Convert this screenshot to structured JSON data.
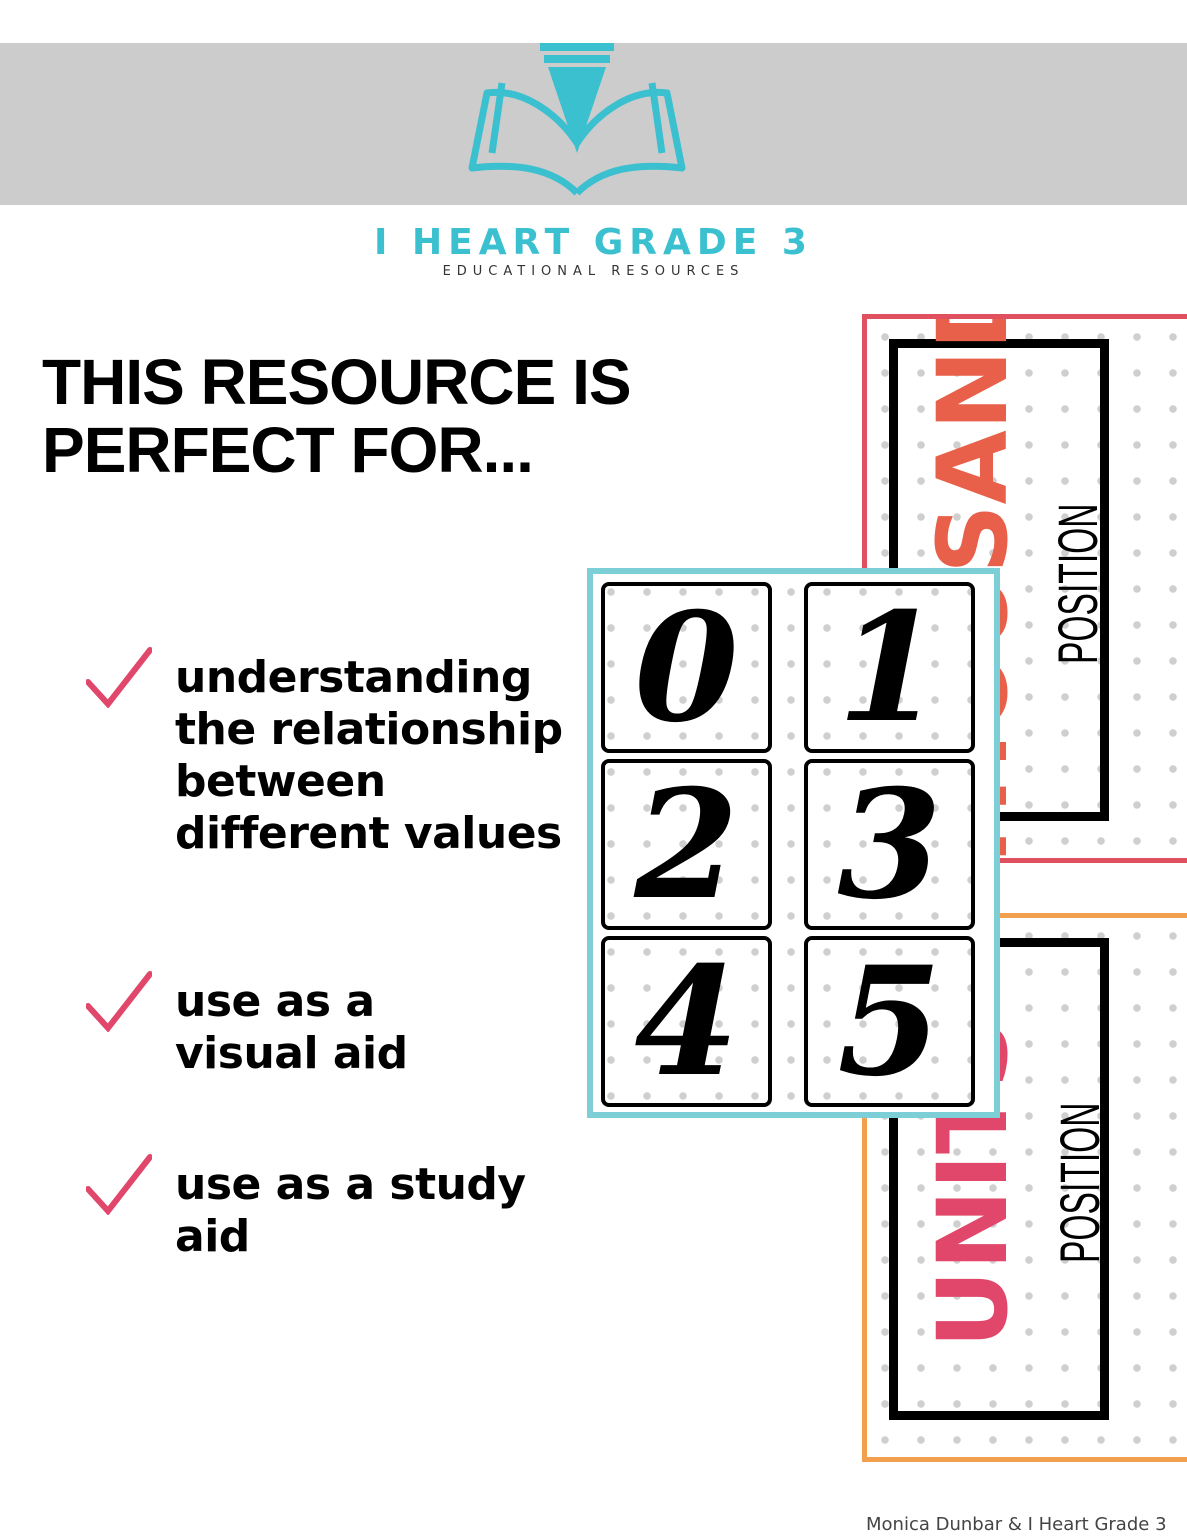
{
  "header": {
    "brand_title": "I HEART GRADE 3",
    "brand_subtitle": "EDUCATIONAL RESOURCES",
    "brand_color": "#3bc0d0",
    "logo_icon": "open-book-pen-icon"
  },
  "headline": {
    "line1": "THIS RESOURCE IS",
    "line2": "PERFECT FOR..."
  },
  "items": [
    {
      "lines": [
        "understanding",
        "the relationship",
        "between",
        "different values"
      ]
    },
    {
      "lines": [
        "use as a",
        "visual aid"
      ]
    },
    {
      "lines": [
        "use as a study",
        "aid"
      ]
    }
  ],
  "check_color": "#e0476a",
  "cards": {
    "thousands": {
      "title": "THOUSANDS",
      "label": "POSITION",
      "border": "#e0505f"
    },
    "units": {
      "title": "UNITS",
      "label": "POSITION",
      "border": "#f2a04e"
    },
    "digits": [
      "0",
      "1",
      "2",
      "3",
      "4",
      "5"
    ]
  },
  "footer": "Monica Dunbar & I Heart Grade 3"
}
